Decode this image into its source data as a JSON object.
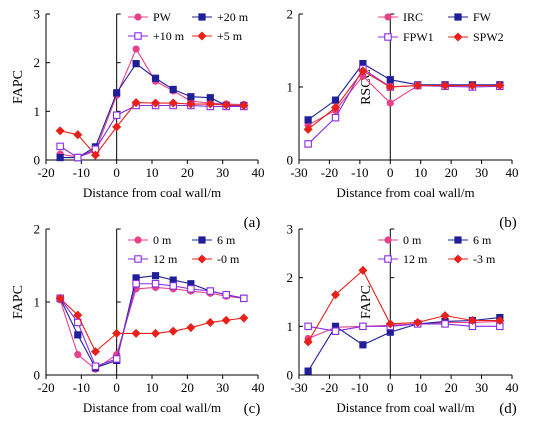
{
  "chart_data": [
    {
      "type": "line",
      "caption": "(a)",
      "xlabel": "Distance from coal wall/m",
      "ylabel": "FAPC",
      "xlim": [
        -20,
        40
      ],
      "ylim": [
        0,
        3
      ],
      "xticks": [
        -20,
        -10,
        0,
        10,
        20,
        30,
        40
      ],
      "yticks": [
        0,
        1,
        2,
        3
      ],
      "x": [
        -16,
        -11,
        -6,
        0,
        5.5,
        11,
        16,
        21,
        26.5,
        31,
        36
      ],
      "legend_position": "top-right",
      "series": [
        {
          "name": "PW",
          "color": "#e8408a",
          "marker": "circle",
          "values": [
            0.12,
            0.06,
            0.18,
            1.33,
            2.28,
            1.62,
            1.42,
            1.21,
            1.17,
            1.15,
            1.14
          ]
        },
        {
          "name": "+20 m",
          "color": "#1f1f9a",
          "marker": "square",
          "values": [
            0.05,
            0.05,
            0.27,
            1.38,
            1.98,
            1.68,
            1.45,
            1.3,
            1.28,
            1.12,
            1.12
          ]
        },
        {
          "name": "+10 m",
          "color": "#8a2be2",
          "marker": "square-open",
          "values": [
            0.28,
            0.05,
            0.22,
            0.92,
            1.12,
            1.12,
            1.12,
            1.12,
            1.1,
            1.1,
            1.1
          ]
        },
        {
          "name": "+5 m",
          "color": "#e8201a",
          "marker": "diamond",
          "values": [
            0.6,
            0.52,
            0.1,
            0.68,
            1.18,
            1.17,
            1.17,
            1.15,
            1.15,
            1.13,
            1.12
          ]
        }
      ]
    },
    {
      "type": "line",
      "caption": "(b)",
      "xlabel": "Distance from coal wall/m",
      "ylabel": "RSCC",
      "xlim": [
        -30,
        40
      ],
      "ylim": [
        0,
        2
      ],
      "xticks": [
        -30,
        -20,
        -10,
        0,
        10,
        20,
        30,
        40
      ],
      "yticks": [
        0,
        1,
        2
      ],
      "x": [
        -27,
        -18,
        -9,
        0,
        9,
        18,
        27,
        36
      ],
      "legend_position": "top-right",
      "series": [
        {
          "name": "IRC",
          "color": "#e8408a",
          "marker": "circle",
          "values": [
            0.48,
            0.68,
            1.15,
            0.78,
            1.02,
            1.02,
            1.02,
            1.02
          ]
        },
        {
          "name": "FW",
          "color": "#1f1f9a",
          "marker": "square",
          "values": [
            0.55,
            0.82,
            1.32,
            1.1,
            1.03,
            1.03,
            1.03,
            1.03
          ]
        },
        {
          "name": "FPW1",
          "color": "#8a2be2",
          "marker": "square-open",
          "values": [
            0.22,
            0.58,
            1.25,
            1.0,
            1.02,
            1.01,
            1.0,
            1.01
          ]
        },
        {
          "name": "SPW2",
          "color": "#e8201a",
          "marker": "diamond",
          "values": [
            0.42,
            0.72,
            1.22,
            1.0,
            1.02,
            1.02,
            1.02,
            1.02
          ]
        }
      ]
    },
    {
      "type": "line",
      "caption": "(c)",
      "xlabel": "Distance from coal wall/m",
      "ylabel": "FAPC",
      "xlim": [
        -20,
        40
      ],
      "ylim": [
        0,
        2
      ],
      "xticks": [
        -20,
        -10,
        0,
        10,
        20,
        30,
        40
      ],
      "yticks": [
        0,
        1,
        2
      ],
      "x": [
        -16,
        -11,
        -6,
        0,
        5.5,
        11,
        16,
        21,
        26.5,
        31,
        36
      ],
      "legend_position": "top-right",
      "series": [
        {
          "name": "0 m",
          "color": "#e8408a",
          "marker": "circle",
          "values": [
            1.03,
            0.28,
            0.08,
            0.28,
            1.18,
            1.2,
            1.18,
            1.15,
            1.12,
            1.08,
            1.05
          ]
        },
        {
          "name": "6 m",
          "color": "#1f1f9a",
          "marker": "square",
          "values": [
            1.05,
            0.55,
            0.1,
            0.2,
            1.33,
            1.36,
            1.3,
            1.25,
            1.15,
            1.1,
            1.05
          ]
        },
        {
          "name": "12 m",
          "color": "#8a2be2",
          "marker": "square-open",
          "values": [
            1.05,
            0.72,
            0.12,
            0.22,
            1.25,
            1.25,
            1.22,
            1.18,
            1.15,
            1.1,
            1.05
          ]
        },
        {
          "name": "-0 m",
          "color": "#e8201a",
          "marker": "diamond",
          "values": [
            1.05,
            0.82,
            0.32,
            0.57,
            0.57,
            0.57,
            0.6,
            0.65,
            0.72,
            0.75,
            0.78
          ]
        }
      ]
    },
    {
      "type": "line",
      "caption": "(d)",
      "xlabel": "Distance from coal wall/m",
      "ylabel": "FAPC",
      "xlim": [
        -30,
        40
      ],
      "ylim": [
        0,
        3
      ],
      "xticks": [
        -30,
        -20,
        -10,
        0,
        10,
        20,
        30,
        40
      ],
      "yticks": [
        0,
        1,
        2,
        3
      ],
      "x": [
        -27,
        -18,
        -9,
        0,
        9,
        18,
        27,
        36
      ],
      "legend_position": "top-right",
      "series": [
        {
          "name": "0 m",
          "color": "#e8408a",
          "marker": "circle",
          "values": [
            0.75,
            0.98,
            1.0,
            1.02,
            1.05,
            1.08,
            1.08,
            1.1
          ]
        },
        {
          "name": "6 m",
          "color": "#1f1f9a",
          "marker": "square",
          "values": [
            0.08,
            1.0,
            0.62,
            0.88,
            1.05,
            1.1,
            1.12,
            1.18
          ]
        },
        {
          "name": "12 m",
          "color": "#8a2be2",
          "marker": "square-open",
          "values": [
            1.0,
            0.9,
            1.0,
            1.0,
            1.05,
            1.05,
            1.0,
            1.0
          ]
        },
        {
          "name": "-3 m",
          "color": "#e8201a",
          "marker": "diamond",
          "values": [
            0.68,
            1.65,
            2.15,
            1.05,
            1.08,
            1.22,
            1.12,
            1.12
          ]
        }
      ]
    }
  ]
}
